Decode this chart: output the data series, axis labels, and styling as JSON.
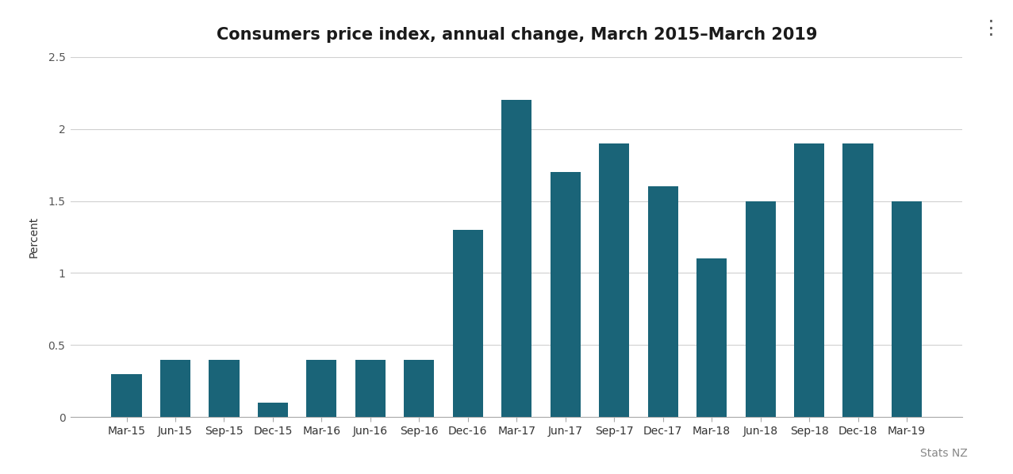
{
  "title": "Consumers price index, annual change, March 2015–March 2019",
  "ylabel": "Percent",
  "categories": [
    "Mar-15",
    "Jun-15",
    "Sep-15",
    "Dec-15",
    "Mar-16",
    "Jun-16",
    "Sep-16",
    "Dec-16",
    "Mar-17",
    "Jun-17",
    "Sep-17",
    "Dec-17",
    "Mar-18",
    "Jun-18",
    "Sep-18",
    "Dec-18",
    "Mar-19"
  ],
  "values": [
    0.3,
    0.4,
    0.4,
    0.1,
    0.4,
    0.4,
    0.4,
    1.3,
    2.2,
    1.7,
    1.9,
    1.6,
    1.1,
    1.5,
    1.9,
    1.9,
    1.5
  ],
  "bar_color": "#1a6478",
  "ylim": [
    0,
    2.5
  ],
  "ytick_values": [
    0,
    0.5,
    1.0,
    1.5,
    2.0,
    2.5
  ],
  "ytick_labels": [
    "0",
    "0.5",
    "1",
    "1.5",
    "2",
    "2.5"
  ],
  "background_color": "#ffffff",
  "grid_color": "#d0d0d0",
  "title_fontsize": 15,
  "ylabel_fontsize": 10,
  "tick_fontsize": 10,
  "watermark": "Stats NZ",
  "bar_width": 0.62
}
